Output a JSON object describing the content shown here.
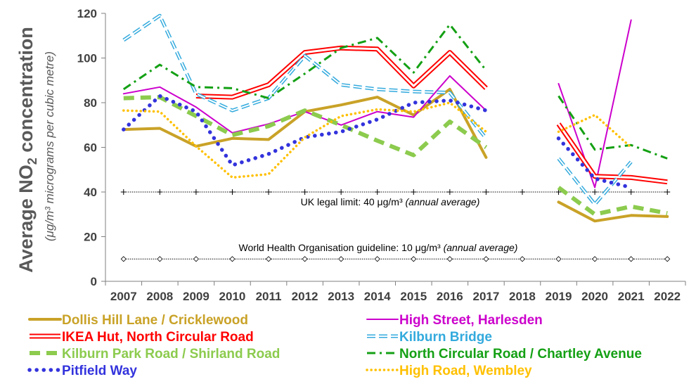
{
  "chart_data": {
    "type": "line",
    "ylabel_main": "Average NO",
    "ylabel_sub2": "2",
    "ylabel_main_rest": " concentration",
    "ylabel_units": "(μg/m³ micrograms per cubic metre)",
    "x": [
      "2007",
      "2008",
      "2009",
      "2010",
      "2011",
      "2012",
      "2013",
      "2014",
      "2015",
      "2016",
      "2017",
      "2018",
      "2019",
      "2020",
      "2021",
      "2022"
    ],
    "ylim": [
      0,
      120
    ],
    "yticks": [
      "0",
      "20",
      "40",
      "60",
      "80",
      "100",
      "120"
    ],
    "grid": false,
    "legend_position": "bottom",
    "reference_lines": [
      {
        "value": 40,
        "label_main": "UK legal limit:  40 μg/m³ ",
        "label_italic": "(annual average)",
        "marker": "plus"
      },
      {
        "value": 10,
        "label_main": "World Health Organisation guideline:  10 μg/m³ ",
        "label_italic": "(annual average)",
        "marker": "diamond"
      }
    ],
    "series": [
      {
        "name": "Dollis Hill Lane / Cricklewood",
        "color": "#C9A227",
        "style": "thick",
        "values": [
          68,
          68.5,
          60.5,
          64,
          63.5,
          76,
          79,
          82.5,
          74.5,
          86,
          55.5,
          null,
          35.5,
          27,
          29.5,
          29
        ]
      },
      {
        "name": "High Street, Harlesden",
        "color": "#CC00CC",
        "style": "thin",
        "values": [
          84,
          87,
          78,
          66.5,
          70.5,
          76,
          70,
          76,
          73.5,
          92,
          76.5,
          null,
          88.5,
          42,
          117,
          null
        ]
      },
      {
        "name": "IKEA Hut, North Circular Road",
        "color": "#FF0000",
        "style": "double",
        "values": [
          null,
          null,
          83,
          82.5,
          88,
          102.5,
          104.5,
          104,
          87.5,
          102.5,
          86.5,
          null,
          70.5,
          47,
          46.5,
          44.5
        ]
      },
      {
        "name": "Kilburn Bridge",
        "color": "#33AADD",
        "style": "double-dash",
        "values": [
          108,
          119,
          84,
          76.5,
          82,
          101,
          88,
          86,
          85,
          84.5,
          64,
          null,
          55,
          34.5,
          53.5,
          null
        ]
      },
      {
        "name": "Kilburn Park Road / Shirland Road",
        "color": "#8CCB4E",
        "style": "dash",
        "values": [
          82,
          82.5,
          74,
          65.5,
          69.5,
          76.5,
          70,
          63,
          56.5,
          71.5,
          60,
          null,
          42,
          30,
          33.5,
          30.5
        ]
      },
      {
        "name": "North Circular Road / Chartley Avenue",
        "color": "#14A014",
        "style": "dashdot",
        "values": [
          86,
          97,
          87,
          86.5,
          82,
          93,
          104.5,
          109,
          93.5,
          115,
          94.5,
          null,
          83,
          59,
          61,
          55
        ]
      },
      {
        "name": "Pitfield Way",
        "color": "#3333DD",
        "style": "dot",
        "values": [
          68,
          83,
          76,
          52,
          57,
          64.5,
          67,
          72.5,
          80,
          81,
          76.5,
          null,
          64,
          46,
          42,
          null
        ]
      },
      {
        "name": "High Road, Wembley",
        "color": "#FFC000",
        "style": "smalldot",
        "values": [
          76.5,
          76,
          60.5,
          46.5,
          48,
          64.5,
          74,
          77,
          76,
          80,
          67,
          null,
          67,
          74.5,
          60,
          null
        ]
      }
    ]
  }
}
